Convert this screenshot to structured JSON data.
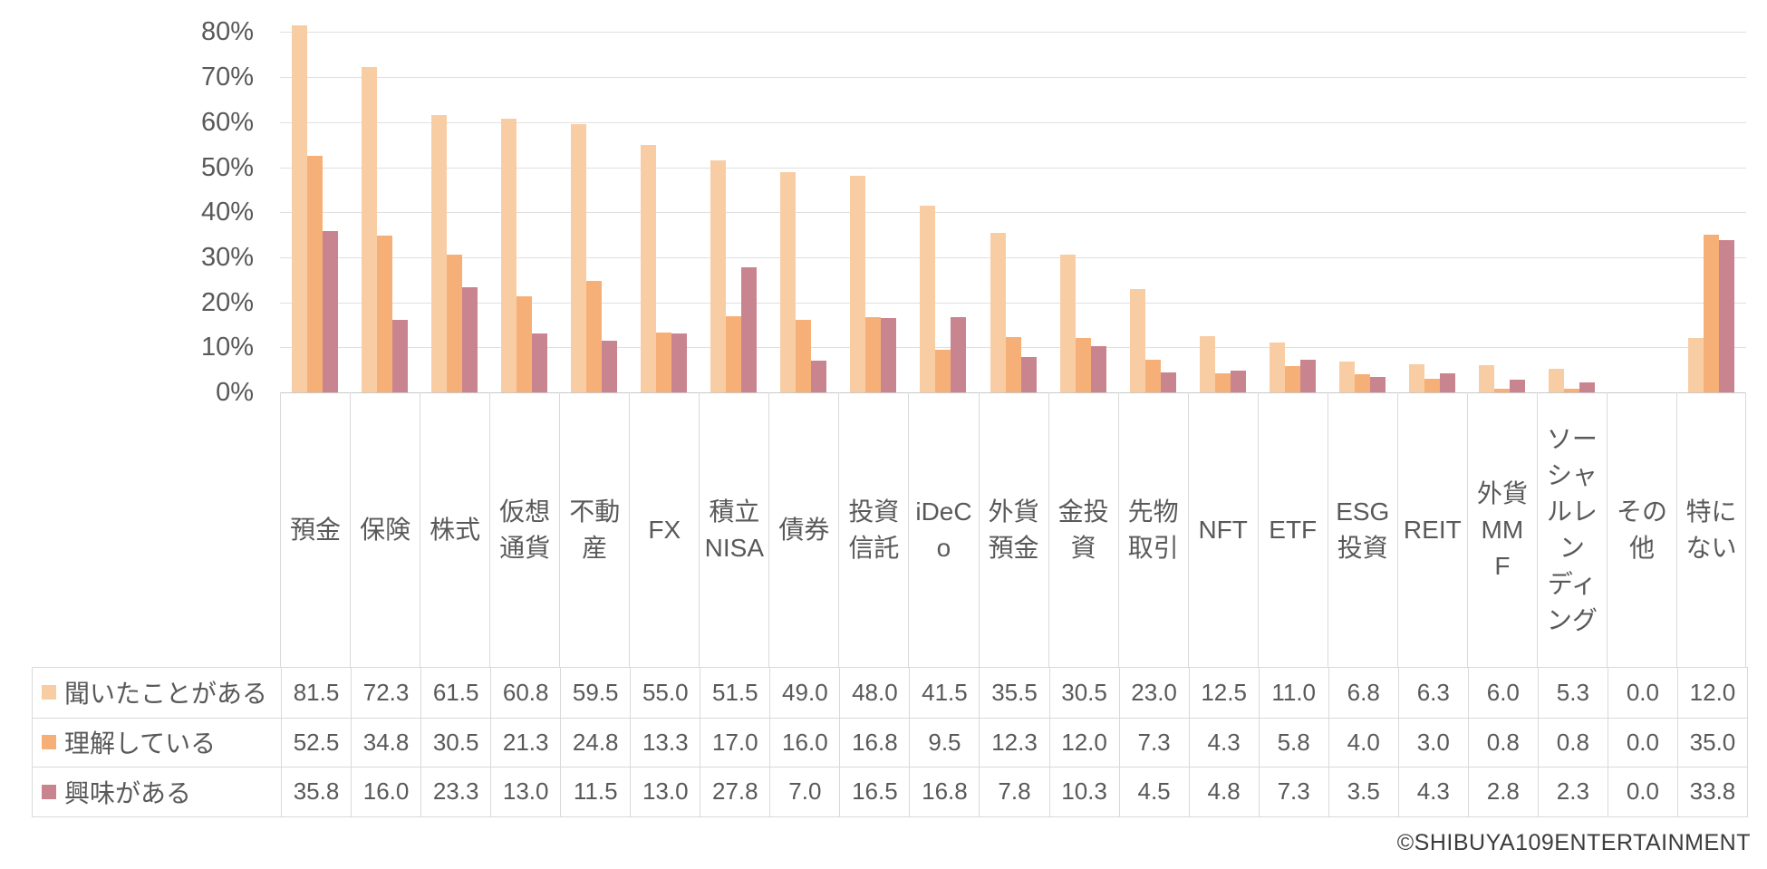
{
  "chart_data": {
    "type": "bar",
    "title": "",
    "categories": [
      "預金",
      "保険",
      "株式",
      "仮想通貨",
      "不動産",
      "FX",
      "積立NISA",
      "債券",
      "投資信託",
      "iDeCo",
      "外貨預金",
      "金投資",
      "先物取引",
      "NFT",
      "ETF",
      "ESG投資",
      "REIT",
      "外貨MMF",
      "ソーシャルレンディング",
      "その他",
      "特にない"
    ],
    "categories_display": [
      "預金",
      "保険",
      "株式",
      "仮想\n通貨",
      "不動\n産",
      "FX",
      "積立\nNISA",
      "債券",
      "投資\n信託",
      "iDeC\no",
      "外貨\n預金",
      "金投\n資",
      "先物\n取引",
      "NFT",
      "ETF",
      "ESG\n投資",
      "REIT",
      "外貨\nMM\nF",
      "ソー\nシャ\nルレ\nン\nディ\nング",
      "その\n他",
      "特に\nない"
    ],
    "series": [
      {
        "name": "聞いたことがある",
        "color": "#F9CDA4",
        "values": [
          81.5,
          72.3,
          61.5,
          60.8,
          59.5,
          55.0,
          51.5,
          49.0,
          48.0,
          41.5,
          35.5,
          30.5,
          23.0,
          12.5,
          11.0,
          6.8,
          6.3,
          6.0,
          5.3,
          0.0,
          12.0
        ]
      },
      {
        "name": "理解している",
        "color": "#F6B077",
        "values": [
          52.5,
          34.8,
          30.5,
          21.3,
          24.8,
          13.3,
          17.0,
          16.0,
          16.8,
          9.5,
          12.3,
          12.0,
          7.3,
          4.3,
          5.8,
          4.0,
          3.0,
          0.8,
          0.8,
          0.0,
          35.0
        ]
      },
      {
        "name": "興味がある",
        "color": "#C9858F",
        "values": [
          35.8,
          16.0,
          23.3,
          13.0,
          11.5,
          13.0,
          27.8,
          7.0,
          16.5,
          16.8,
          7.8,
          10.3,
          4.5,
          4.8,
          7.3,
          3.5,
          4.3,
          2.8,
          2.3,
          0.0,
          33.8
        ]
      }
    ],
    "yticks": [
      "80%",
      "70%",
      "60%",
      "50%",
      "40%",
      "30%",
      "20%",
      "10%",
      "0%"
    ],
    "ylim": [
      0,
      80
    ],
    "ytick_step": 10,
    "grid": true,
    "legend_position": "table-left",
    "value_decimals": 1
  },
  "footer": {
    "copyright": "©SHIBUYA109ENTERTAINMENT"
  },
  "colors": {
    "background": "#FFFFFF",
    "grid": "#E0E0E0",
    "axis": "#C9C9C9",
    "table_border": "#D9D9D9",
    "text": "#595959",
    "copyright_text": "#3C3C3C"
  }
}
